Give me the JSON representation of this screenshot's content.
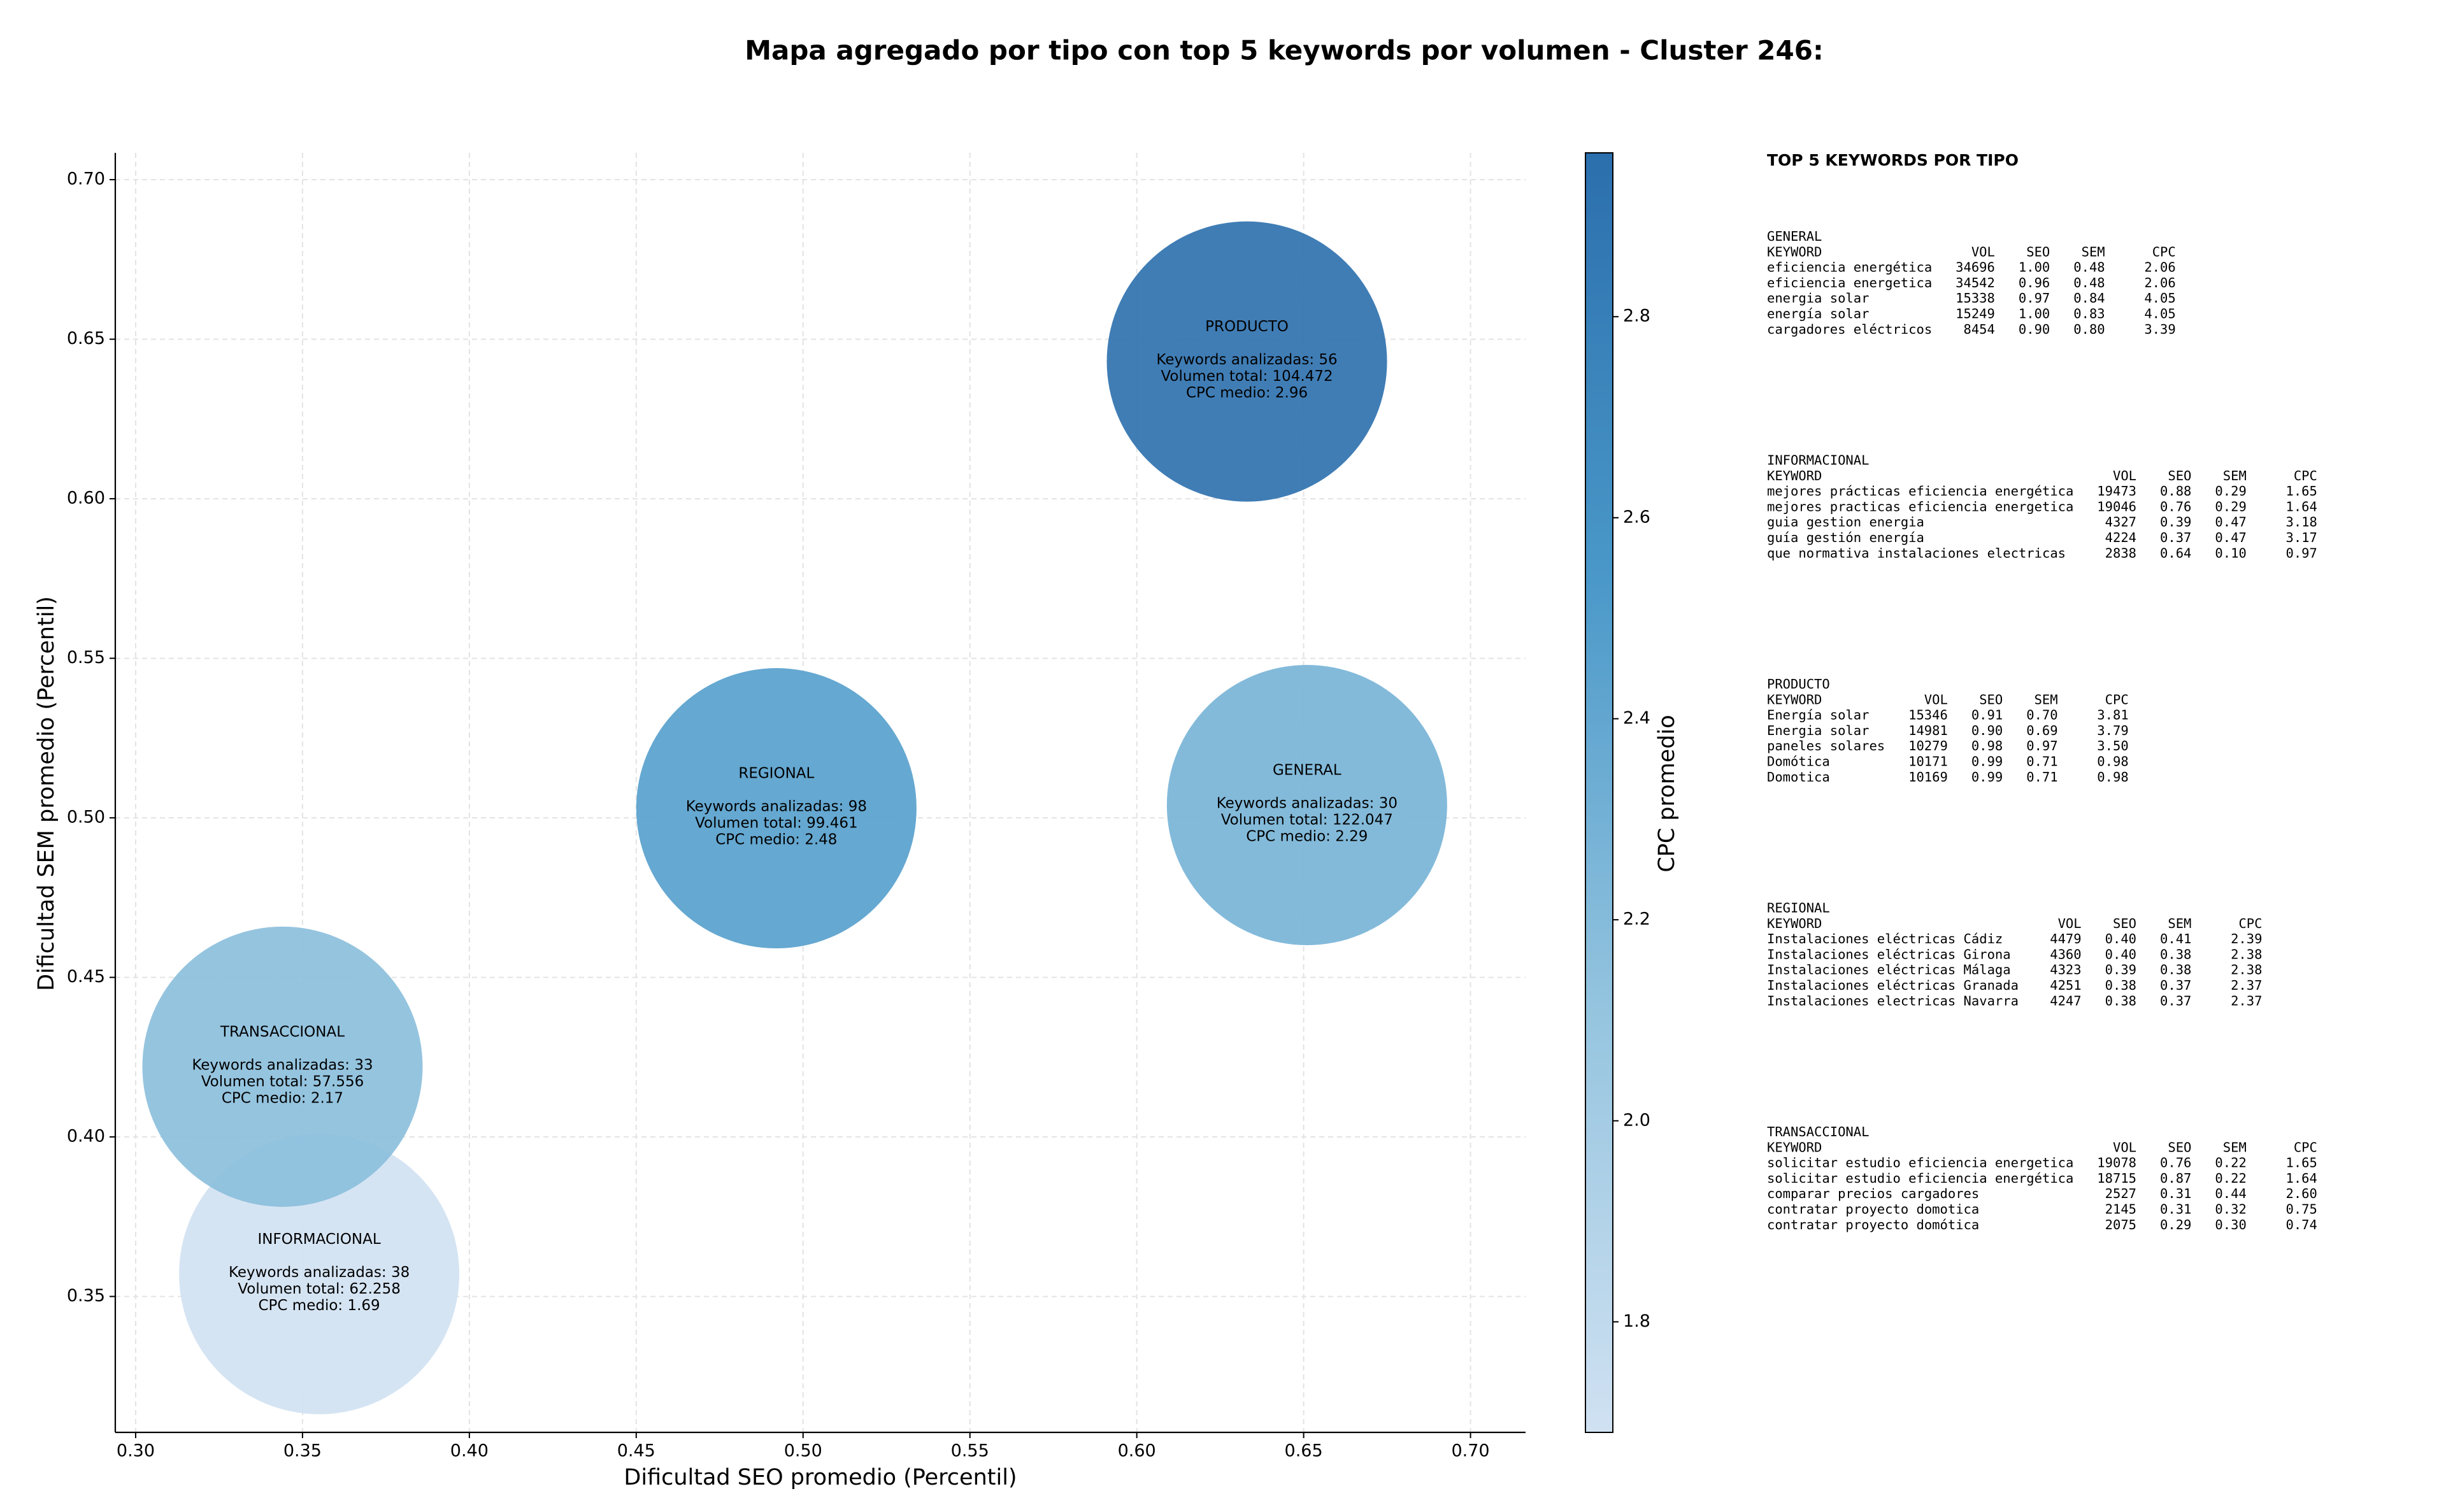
{
  "chart_data": {
    "type": "bubble",
    "title": "Mapa agregado por tipo con top 5 keywords por volumen - Cluster 246:",
    "x_label": "Dificultad SEO promedio (Percentil)",
    "y_label": "Dificultad SEM promedio (Percentil)",
    "labels": [
      "GENERAL",
      "INFORMACIONAL",
      "PRODUCTO",
      "REGIONAL",
      "TRANSACCIONAL"
    ],
    "x": [
      0.651,
      0.355,
      0.633,
      0.492,
      0.344
    ],
    "values": [
      0.504,
      0.357,
      0.643,
      0.503,
      0.422
    ],
    "color_values": [
      2.29,
      1.69,
      2.96,
      2.48,
      2.17
    ],
    "annotations": [
      [
        "Keywords analizadas: 30",
        "Volumen total: 122.047",
        "CPC medio: 2.29"
      ],
      [
        "Keywords analizadas: 38",
        "Volumen total: 62.258",
        "CPC medio: 1.69"
      ],
      [
        "Keywords analizadas: 56",
        "Volumen total: 104.472",
        "CPC medio: 2.96"
      ],
      [
        "Keywords analizadas: 98",
        "Volumen total: 99.461",
        "CPC medio: 2.48"
      ],
      [
        "Keywords analizadas: 33",
        "Volumen total: 57.556",
        "CPC medio: 2.17"
      ]
    ],
    "xlim": [
      0.2939,
      0.7165
    ],
    "ylim": [
      0.3074,
      0.7084
    ],
    "xticks": [
      {
        "value": 0.3,
        "label": "0.30"
      },
      0.35,
      {
        "value": 0.4,
        "label": "0.40"
      },
      0.45,
      {
        "value": 0.5,
        "label": "0.50"
      },
      0.55,
      {
        "value": 0.6,
        "label": "0.60"
      },
      0.65,
      {
        "value": 0.7,
        "label": "0.70"
      }
    ],
    "yticks": [
      0.35,
      {
        "value": 0.4,
        "label": "0.40"
      },
      0.45,
      {
        "value": 0.5,
        "label": "0.50"
      },
      0.55,
      {
        "value": 0.6,
        "label": "0.60"
      },
      0.65,
      {
        "value": 0.7,
        "label": "0.70"
      }
    ],
    "grid": true,
    "colorbar_label": "CPC promedio",
    "clim": [
      1.69,
      2.963
    ],
    "cticks": [
      1.8,
      {
        "value": 2,
        "label": "2.0"
      },
      2.2,
      2.4,
      2.6,
      2.8
    ],
    "colormap": [
      "#d0e1f2",
      "#94c4df",
      "#4a98c9",
      "#2b6fad"
    ]
  },
  "panel": {
    "title": "TOP 5 KEYWORDS POR TIPO",
    "columns": [
      "KEYWORD",
      "VOL",
      "SEO",
      "SEM",
      "CPC"
    ],
    "sections": [
      {
        "name": "GENERAL",
        "rows": [
          [
            "eficiencia energética",
            "34696",
            "1.00",
            "0.48",
            "2.06"
          ],
          [
            "eficiencia energetica",
            "34542",
            "0.96",
            "0.48",
            "2.06"
          ],
          [
            "energia solar",
            "15338",
            "0.97",
            "0.84",
            "4.05"
          ],
          [
            "energía solar",
            "15249",
            "1.00",
            "0.83",
            "4.05"
          ],
          [
            "cargadores eléctricos",
            "8454",
            "0.90",
            "0.80",
            "3.39"
          ]
        ]
      },
      {
        "name": "INFORMACIONAL",
        "rows": [
          [
            "mejores prácticas eficiencia energética",
            "19473",
            "0.88",
            "0.29",
            "1.65"
          ],
          [
            "mejores practicas eficiencia energetica",
            "19046",
            "0.76",
            "0.29",
            "1.64"
          ],
          [
            "guia gestion energia",
            "4327",
            "0.39",
            "0.47",
            "3.18"
          ],
          [
            "guía gestión energía",
            "4224",
            "0.37",
            "0.47",
            "3.17"
          ],
          [
            "que normativa instalaciones electricas",
            "2838",
            "0.64",
            "0.10",
            "0.97"
          ]
        ]
      },
      {
        "name": "PRODUCTO",
        "rows": [
          [
            "Energía solar",
            "15346",
            "0.91",
            "0.70",
            "3.81"
          ],
          [
            "Energia solar",
            "14981",
            "0.90",
            "0.69",
            "3.79"
          ],
          [
            "paneles solares",
            "10279",
            "0.98",
            "0.97",
            "3.50"
          ],
          [
            "Domótica",
            "10171",
            "0.99",
            "0.71",
            "0.98"
          ],
          [
            "Domotica",
            "10169",
            "0.99",
            "0.71",
            "0.98"
          ]
        ]
      },
      {
        "name": "REGIONAL",
        "rows": [
          [
            "Instalaciones eléctricas Cádiz",
            "4479",
            "0.40",
            "0.41",
            "2.39"
          ],
          [
            "Instalaciones eléctricas Girona",
            "4360",
            "0.40",
            "0.38",
            "2.38"
          ],
          [
            "Instalaciones eléctricas Málaga",
            "4323",
            "0.39",
            "0.38",
            "2.38"
          ],
          [
            "Instalaciones eléctricas Granada",
            "4251",
            "0.38",
            "0.37",
            "2.37"
          ],
          [
            "Instalaciones electricas Navarra",
            "4247",
            "0.38",
            "0.37",
            "2.37"
          ]
        ]
      },
      {
        "name": "TRANSACCIONAL",
        "rows": [
          [
            "solicitar estudio eficiencia energetica",
            "19078",
            "0.76",
            "0.22",
            "1.65"
          ],
          [
            "solicitar estudio eficiencia energética",
            "18715",
            "0.87",
            "0.22",
            "1.64"
          ],
          [
            "comparar precios cargadores",
            "2527",
            "0.31",
            "0.44",
            "2.60"
          ],
          [
            "contratar proyecto domotica",
            "2145",
            "0.31",
            "0.32",
            "0.75"
          ],
          [
            "contratar proyecto domótica",
            "2075",
            "0.29",
            "0.30",
            "0.74"
          ]
        ]
      }
    ]
  }
}
